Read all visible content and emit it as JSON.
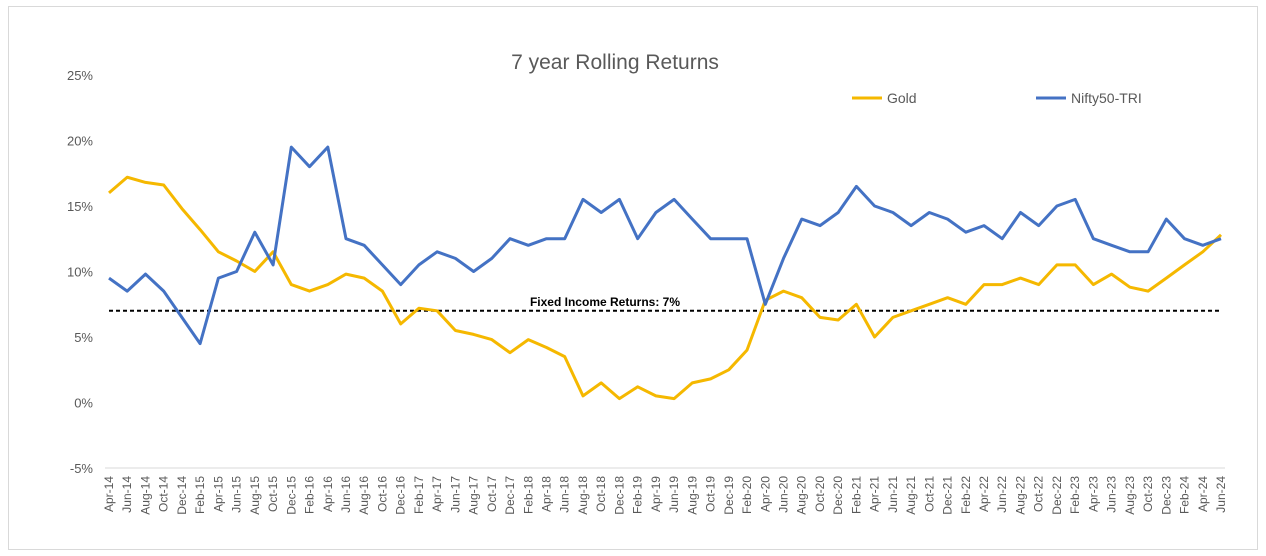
{
  "chart_data": {
    "type": "line",
    "title": "7 year Rolling Returns",
    "xlabel": "",
    "ylabel": "",
    "ylim": [
      -5,
      25
    ],
    "y_ticks": [
      "-5%",
      "0%",
      "5%",
      "10%",
      "15%",
      "20%",
      "25%"
    ],
    "y_tick_values": [
      -5,
      0,
      5,
      10,
      15,
      20,
      25
    ],
    "x_ticks": [
      "Apr-14",
      "Jun-14",
      "Aug-14",
      "Oct-14",
      "Dec-14",
      "Feb-15",
      "Apr-15",
      "Jun-15",
      "Aug-15",
      "Oct-15",
      "Dec-15",
      "Feb-16",
      "Apr-16",
      "Jun-16",
      "Aug-16",
      "Oct-16",
      "Dec-16",
      "Feb-17",
      "Apr-17",
      "Jun-17",
      "Aug-17",
      "Oct-17",
      "Dec-17",
      "Feb-18",
      "Apr-18",
      "Jun-18",
      "Aug-18",
      "Oct-18",
      "Dec-18",
      "Feb-19",
      "Apr-19",
      "Jun-19",
      "Aug-19",
      "Oct-19",
      "Dec-19",
      "Feb-20",
      "Apr-20",
      "Jun-20",
      "Aug-20",
      "Oct-20",
      "Dec-20",
      "Feb-21",
      "Apr-21",
      "Jun-21",
      "Aug-21",
      "Oct-21",
      "Dec-21",
      "Feb-22",
      "Apr-22",
      "Jun-22",
      "Aug-22",
      "Oct-22",
      "Dec-22",
      "Feb-23",
      "Apr-23",
      "Jun-23",
      "Aug-23",
      "Oct-23",
      "Dec-23",
      "Feb-24",
      "Apr-24",
      "Jun-24"
    ],
    "legend_position": "top-right",
    "grid": false,
    "reference_line": {
      "value": 7,
      "label": "Fixed Income Returns: 7%"
    },
    "series": [
      {
        "name": "Gold",
        "color": "#f5b800",
        "values": [
          16.0,
          17.2,
          16.8,
          16.6,
          14.8,
          13.2,
          11.5,
          10.8,
          10.0,
          11.5,
          9.0,
          8.5,
          9.0,
          9.8,
          9.5,
          8.5,
          6.0,
          7.2,
          7.0,
          5.5,
          5.2,
          4.8,
          3.8,
          4.8,
          4.2,
          3.5,
          0.5,
          1.5,
          0.3,
          1.2,
          0.5,
          0.3,
          1.5,
          1.8,
          2.5,
          4.0,
          7.8,
          8.5,
          8.0,
          6.5,
          6.3,
          7.5,
          5.0,
          6.5,
          7.0,
          7.5,
          8.0,
          7.5,
          9.0,
          9.0,
          9.5,
          9.0,
          10.5,
          10.5,
          9.0,
          9.8,
          8.8,
          8.5,
          9.5,
          10.5,
          11.5,
          12.8
        ]
      },
      {
        "name": "Nifty50-TRI",
        "color": "#4472c4",
        "values": [
          9.5,
          8.5,
          9.8,
          8.5,
          6.5,
          4.5,
          9.5,
          10.0,
          13.0,
          10.5,
          19.5,
          18.0,
          19.5,
          12.5,
          12.0,
          10.5,
          9.0,
          10.5,
          11.5,
          11.0,
          10.0,
          11.0,
          12.5,
          12.0,
          12.5,
          12.5,
          15.5,
          14.5,
          15.5,
          12.5,
          14.5,
          15.5,
          14.0,
          12.5,
          12.5,
          12.5,
          7.5,
          11.0,
          14.0,
          13.5,
          14.5,
          16.5,
          15.0,
          14.5,
          13.5,
          14.5,
          14.0,
          13.0,
          13.5,
          12.5,
          14.5,
          13.5,
          15.0,
          15.5,
          12.5,
          12.0,
          11.5,
          11.5,
          14.0,
          12.5,
          12.0,
          12.5
        ]
      }
    ]
  }
}
